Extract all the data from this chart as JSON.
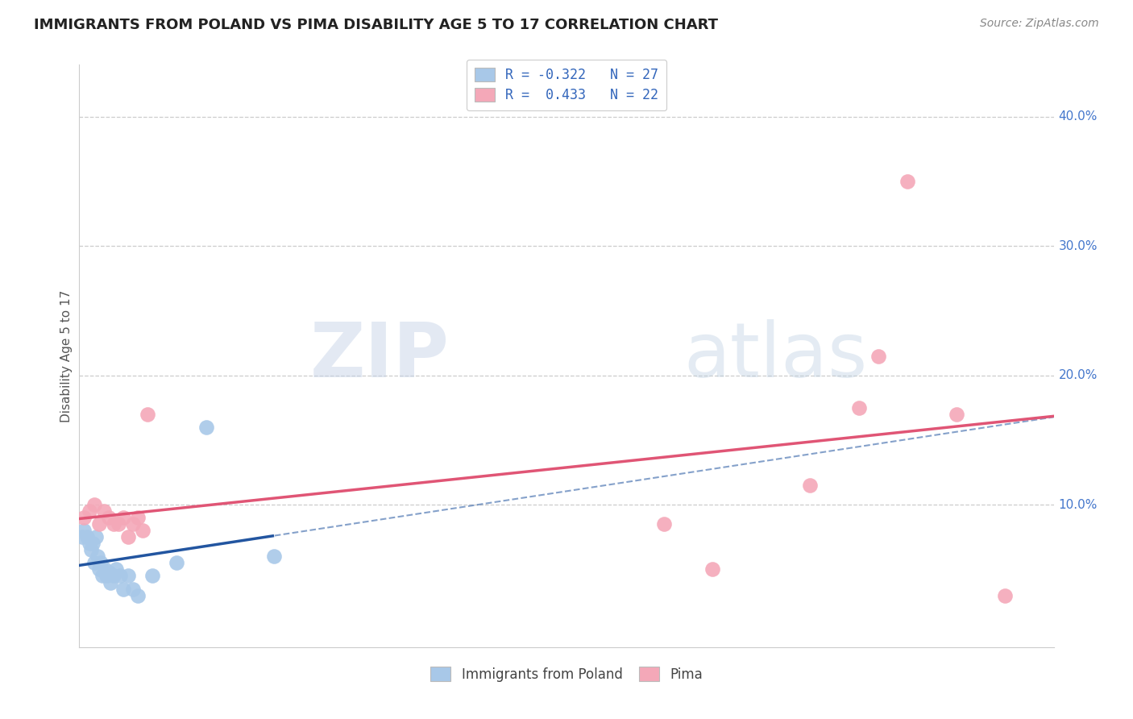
{
  "title": "IMMIGRANTS FROM POLAND VS PIMA DISABILITY AGE 5 TO 17 CORRELATION CHART",
  "source": "Source: ZipAtlas.com",
  "ylabel": "Disability Age 5 to 17",
  "xlim": [
    0,
    100
  ],
  "ylim": [
    -1,
    44
  ],
  "legend_labels": [
    "Immigrants from Poland",
    "Pima"
  ],
  "R_poland": -0.322,
  "N_poland": 27,
  "R_pima": 0.433,
  "N_pima": 22,
  "blue_color": "#a8c8e8",
  "pink_color": "#f4a8b8",
  "blue_line_color": "#2255a0",
  "pink_line_color": "#e05575",
  "background_color": "#ffffff",
  "grid_color": "#cccccc",
  "poland_x": [
    0.3,
    0.5,
    0.8,
    1.0,
    1.2,
    1.4,
    1.5,
    1.7,
    1.9,
    2.0,
    2.2,
    2.4,
    2.6,
    2.8,
    3.0,
    3.2,
    3.5,
    3.8,
    4.2,
    4.5,
    5.0,
    5.5,
    6.0,
    7.5,
    10.0,
    13.0,
    20.0
  ],
  "poland_y": [
    7.5,
    8.0,
    7.5,
    7.0,
    6.5,
    7.0,
    5.5,
    7.5,
    6.0,
    5.0,
    5.5,
    4.5,
    5.0,
    4.5,
    4.8,
    4.0,
    4.5,
    5.0,
    4.5,
    3.5,
    4.5,
    3.5,
    3.0,
    4.5,
    5.5,
    16.0,
    6.0
  ],
  "pima_x": [
    0.5,
    1.0,
    1.5,
    2.0,
    2.5,
    3.0,
    3.5,
    4.0,
    4.5,
    5.0,
    5.5,
    6.0,
    6.5,
    7.0,
    60.0,
    65.0,
    75.0,
    80.0,
    82.0,
    85.0,
    90.0,
    95.0
  ],
  "pima_y": [
    9.0,
    9.5,
    10.0,
    8.5,
    9.5,
    9.0,
    8.5,
    8.5,
    9.0,
    7.5,
    8.5,
    9.0,
    8.0,
    17.0,
    8.5,
    5.0,
    11.5,
    17.5,
    21.5,
    35.0,
    17.0,
    3.0
  ]
}
